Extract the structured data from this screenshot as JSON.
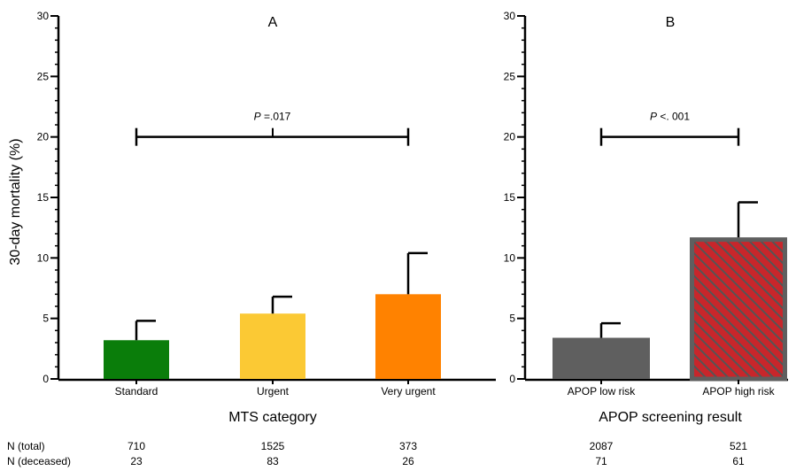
{
  "y_axis_label": "30-day mortality (%)",
  "chart_data": [
    {
      "type": "bar",
      "title": "A",
      "xlabel": "MTS category",
      "ylabel": "30-day mortality (%)",
      "ylim": [
        0,
        30
      ],
      "yticks": [
        0,
        5,
        10,
        15,
        20,
        25,
        30
      ],
      "categories": [
        "Standard",
        "Urgent",
        "Very urgent"
      ],
      "values": [
        3.2,
        5.4,
        7.0
      ],
      "error_upper": [
        4.8,
        6.8,
        10.4
      ],
      "bar_colors": [
        "#0a7d0a",
        "#fbc934",
        "#ff8200"
      ],
      "significance": {
        "label_prefix": "P",
        "label_value": " =.017",
        "y": 20,
        "from": 0,
        "to": 2
      },
      "n_total": [
        "710",
        "1525",
        "373"
      ],
      "n_deceased": [
        "23",
        "83",
        "26"
      ]
    },
    {
      "type": "bar",
      "title": "B",
      "xlabel": "APOP screening result",
      "ylim": [
        0,
        30
      ],
      "yticks": [
        0,
        5,
        10,
        15,
        20,
        25,
        30
      ],
      "categories": [
        "APOP low risk",
        "APOP high risk"
      ],
      "values": [
        3.4,
        11.7
      ],
      "error_upper": [
        4.6,
        14.6
      ],
      "bar_colors": [
        "#5f5f5f",
        "#c8262b"
      ],
      "hatched": [
        false,
        true
      ],
      "significance": {
        "label_prefix": "P",
        "label_value": " <. 001",
        "y": 20,
        "from": 0,
        "to": 1
      },
      "n_total": [
        "2087",
        "521"
      ],
      "n_deceased": [
        "71",
        "61"
      ]
    }
  ],
  "row_labels": {
    "total": "N (total)",
    "deceased": "N (deceased)"
  }
}
